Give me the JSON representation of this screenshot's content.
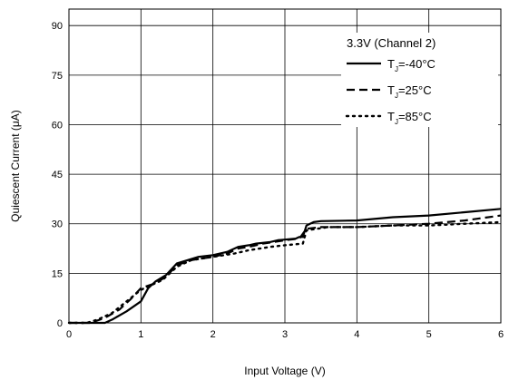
{
  "chart_data": {
    "type": "line",
    "xlabel": "Input Voltage (V)",
    "ylabel": "Quiescent Current (μA)",
    "xlim": [
      0,
      6
    ],
    "ylim": [
      0,
      95
    ],
    "x_ticks": [
      "0",
      "1",
      "2",
      "3",
      "4",
      "5",
      "6"
    ],
    "y_ticks": [
      "0",
      "15",
      "30",
      "45",
      "60",
      "75",
      "90"
    ],
    "grid": true,
    "legend_title": "3.3V (Channel 2)",
    "legend_position": "top-right",
    "series": [
      {
        "name": "TJ=-40°C",
        "label_main": "T",
        "label_sub": "J",
        "label_rest": "=-40°C",
        "style": "solid",
        "points": [
          [
            0,
            0
          ],
          [
            0.5,
            0
          ],
          [
            0.6,
            1
          ],
          [
            0.8,
            3.5
          ],
          [
            1.0,
            6.5
          ],
          [
            1.1,
            10.5
          ],
          [
            1.2,
            12.5
          ],
          [
            1.35,
            14.5
          ],
          [
            1.5,
            18
          ],
          [
            1.65,
            19
          ],
          [
            1.8,
            20
          ],
          [
            2.0,
            20.5
          ],
          [
            2.2,
            21.5
          ],
          [
            2.35,
            23
          ],
          [
            2.5,
            23.5
          ],
          [
            2.6,
            24
          ],
          [
            2.8,
            24.5
          ],
          [
            2.9,
            25
          ],
          [
            3.0,
            25.2
          ],
          [
            3.15,
            25.5
          ],
          [
            3.2,
            26
          ],
          [
            3.25,
            26
          ],
          [
            3.3,
            29.5
          ],
          [
            3.4,
            30.5
          ],
          [
            3.5,
            30.8
          ],
          [
            4.0,
            31
          ],
          [
            4.5,
            32
          ],
          [
            5.0,
            32.5
          ],
          [
            5.5,
            33.5
          ],
          [
            6.0,
            34.5
          ]
        ]
      },
      {
        "name": "TJ=25°C",
        "label_main": "T",
        "label_sub": "J",
        "label_rest": "=25°C",
        "style": "dashed",
        "points": [
          [
            0,
            0
          ],
          [
            0.3,
            0
          ],
          [
            0.5,
            1.5
          ],
          [
            0.7,
            4
          ],
          [
            0.85,
            7
          ],
          [
            1.0,
            10.5
          ],
          [
            1.2,
            12
          ],
          [
            1.35,
            14
          ],
          [
            1.5,
            17.5
          ],
          [
            1.7,
            19
          ],
          [
            2.0,
            20
          ],
          [
            2.2,
            21
          ],
          [
            2.35,
            22.5
          ],
          [
            2.5,
            23
          ],
          [
            2.7,
            24
          ],
          [
            3.0,
            25
          ],
          [
            3.2,
            25.5
          ],
          [
            3.3,
            28.5
          ],
          [
            3.5,
            29
          ],
          [
            4.0,
            29
          ],
          [
            4.5,
            29.5
          ],
          [
            5.0,
            30
          ],
          [
            5.5,
            31
          ],
          [
            6.0,
            32.5
          ]
        ]
      },
      {
        "name": "TJ=85°C",
        "label_main": "T",
        "label_sub": "J",
        "label_rest": "=85°C",
        "style": "dotted",
        "points": [
          [
            0,
            0
          ],
          [
            0.25,
            0
          ],
          [
            0.4,
            1
          ],
          [
            0.6,
            3
          ],
          [
            0.8,
            6.5
          ],
          [
            1.0,
            10
          ],
          [
            1.1,
            11
          ],
          [
            1.3,
            13
          ],
          [
            1.5,
            17
          ],
          [
            1.7,
            19
          ],
          [
            2.0,
            20
          ],
          [
            2.3,
            21
          ],
          [
            2.5,
            22
          ],
          [
            2.8,
            23
          ],
          [
            3.0,
            23.5
          ],
          [
            3.25,
            24
          ],
          [
            3.3,
            28
          ],
          [
            3.6,
            29
          ],
          [
            4.0,
            29
          ],
          [
            4.5,
            29.5
          ],
          [
            5.0,
            29.5
          ],
          [
            5.5,
            30
          ],
          [
            6.0,
            30.5
          ]
        ]
      }
    ]
  }
}
